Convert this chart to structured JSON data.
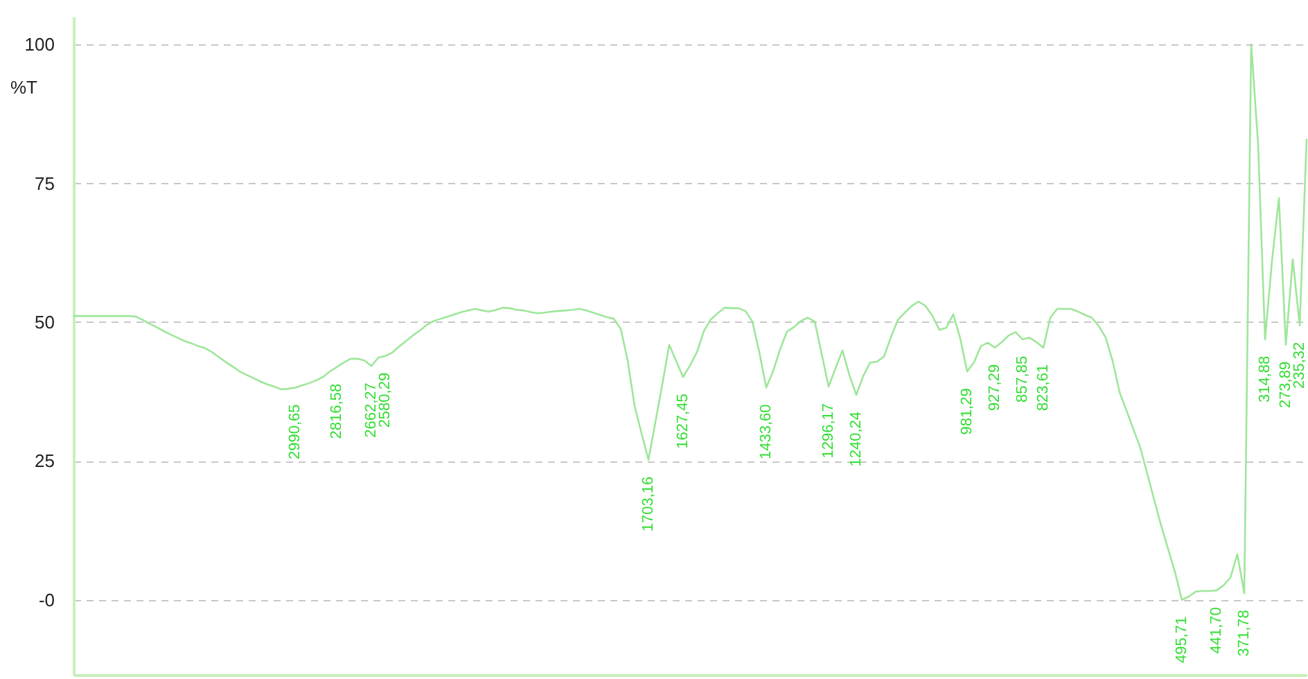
{
  "chart_data": {
    "type": "line",
    "ylabel": "%T",
    "categories": [
      null,
      null,
      null,
      null,
      null,
      null,
      null,
      null,
      null,
      null,
      null,
      null,
      null,
      null,
      null,
      null,
      null,
      null,
      null,
      null,
      null,
      null,
      null,
      null,
      null,
      null,
      null,
      null,
      null,
      null,
      null,
      null,
      "2990,65",
      null,
      null,
      null,
      null,
      null,
      "2816,58",
      null,
      null,
      null,
      null,
      "2662,27",
      null,
      "2580,29",
      null,
      null,
      null,
      null,
      null,
      null,
      null,
      null,
      null,
      null,
      null,
      null,
      null,
      null,
      null,
      null,
      null,
      null,
      null,
      null,
      null,
      null,
      null,
      null,
      null,
      null,
      null,
      null,
      null,
      null,
      null,
      null,
      null,
      null,
      null,
      null,
      null,
      "1703,16",
      null,
      null,
      null,
      null,
      "1627,45",
      null,
      null,
      null,
      null,
      null,
      null,
      null,
      null,
      null,
      null,
      null,
      "1433,60",
      null,
      null,
      null,
      null,
      null,
      null,
      null,
      null,
      "1296,17",
      null,
      null,
      null,
      "1240,24",
      null,
      null,
      null,
      null,
      null,
      null,
      null,
      null,
      null,
      null,
      null,
      null,
      null,
      null,
      null,
      "981,29",
      null,
      null,
      null,
      "927,29",
      null,
      null,
      null,
      "857,85",
      null,
      null,
      "823,61",
      null,
      null,
      null,
      null,
      null,
      null,
      null,
      null,
      null,
      null,
      null,
      null,
      null,
      null,
      null,
      null,
      null,
      null,
      null,
      "495,71",
      null,
      null,
      null,
      null,
      "441,70",
      null,
      null,
      null,
      "371,78",
      null,
      null,
      "314,88",
      null,
      null,
      "273,89",
      null,
      "235,32",
      null
    ],
    "series": [
      {
        "color": "#9ee69a",
        "values": [
          51.1,
          51.1,
          51.1,
          51.1,
          51.1,
          51.1,
          51.1,
          51.1,
          51.1,
          51.0,
          50.4,
          49.7,
          49.1,
          48.4,
          47.8,
          47.2,
          46.6,
          46.2,
          45.7,
          45.3,
          44.6,
          43.7,
          42.8,
          42.0,
          41.1,
          40.5,
          39.9,
          39.3,
          38.8,
          38.4,
          37.9,
          38.0,
          38.2,
          38.6,
          39.0,
          39.5,
          40.1,
          41.1,
          41.9,
          42.7,
          43.4,
          43.4,
          43.1,
          42.1,
          43.6,
          43.9,
          44.5,
          45.6,
          46.6,
          47.6,
          48.5,
          49.5,
          50.2,
          50.6,
          51.0,
          51.4,
          51.8,
          52.1,
          52.4,
          52.1,
          51.9,
          52.2,
          52.6,
          52.5,
          52.2,
          52.1,
          51.8,
          51.6,
          51.7,
          51.9,
          52.0,
          52.1,
          52.2,
          52.4,
          52.1,
          51.7,
          51.3,
          50.9,
          50.6,
          48.8,
          43.1,
          34.9,
          30.0,
          25.2,
          32.0,
          38.8,
          45.9,
          43.0,
          40.1,
          42.2,
          44.6,
          48.4,
          50.5,
          51.6,
          52.6,
          52.5,
          52.5,
          52.0,
          50.1,
          44.6,
          38.2,
          41.2,
          45.1,
          48.3,
          49.1,
          50.2,
          50.8,
          50.1,
          44.3,
          38.4,
          41.7,
          44.9,
          40.5,
          36.9,
          40.3,
          42.7,
          42.9,
          43.8,
          47.3,
          50.4,
          51.7,
          52.9,
          53.7,
          52.9,
          51.1,
          48.6,
          49.0,
          51.4,
          47.1,
          41.1,
          42.8,
          45.7,
          46.3,
          45.4,
          46.4,
          47.6,
          48.2,
          46.9,
          47.2,
          46.4,
          45.4,
          50.8,
          52.4,
          52.4,
          52.4,
          51.9,
          51.3,
          50.8,
          49.3,
          47.2,
          43.0,
          37.4,
          34.1,
          30.7,
          27.4,
          22.7,
          18.0,
          13.4,
          9.2,
          5.0,
          0,
          0.6,
          1.5,
          1.6,
          1.6,
          1.7,
          2.6,
          4.0,
          8.2,
          1.2,
          100,
          82,
          46.9,
          61,
          72.3,
          45.9,
          61.3,
          49.4,
          83.0
        ]
      }
    ],
    "ylim": [
      -13.5,
      105
    ],
    "yticks": [
      {
        "value": 0,
        "label": "-0"
      },
      25,
      50,
      75,
      100
    ],
    "grid": "y",
    "line_style": "solid"
  }
}
